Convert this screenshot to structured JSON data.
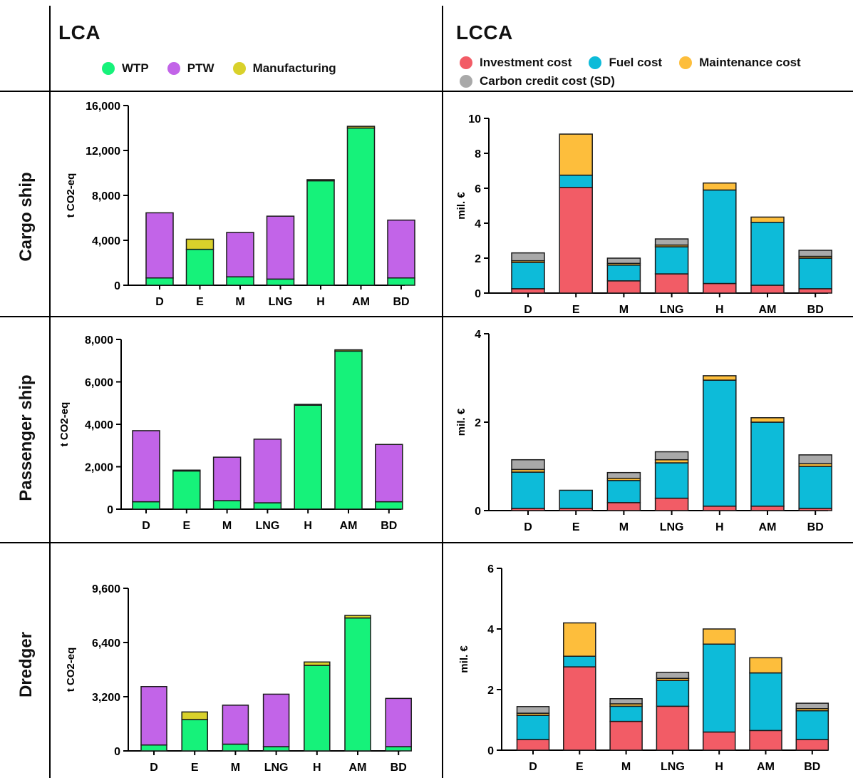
{
  "headers": {
    "lca": "LCA",
    "lcca": "LCCA"
  },
  "legend_lca": [
    {
      "label": "WTP",
      "color": "#16F27A"
    },
    {
      "label": "PTW",
      "color": "#C264E8"
    },
    {
      "label": "Manufacturing",
      "color": "#D9D12B"
    }
  ],
  "legend_lcca": [
    {
      "label": "Investment cost",
      "color": "#F25C66"
    },
    {
      "label": "Fuel cost",
      "color": "#0DBBD9"
    },
    {
      "label": "Maintenance cost",
      "color": "#FDBE3C"
    },
    {
      "label": "Carbon credit cost (SD)",
      "color": "#A9A9A9"
    }
  ],
  "rows": [
    "Cargo ship",
    "Passenger  ship",
    "Dredger"
  ],
  "chart_data": [
    {
      "type": "bar",
      "stacked": true,
      "panel": "cargo-lca",
      "categories": [
        "D",
        "E",
        "M",
        "LNG",
        "H",
        "AM",
        "BD"
      ],
      "ylabel": "t CO2-eq",
      "ylim": [
        0,
        16000
      ],
      "yticks": [
        0,
        4000,
        8000,
        12000,
        16000
      ],
      "ytick_labels": [
        "0",
        "4,000",
        "8,000",
        "12,000",
        "16,000"
      ],
      "series": [
        {
          "name": "WTP",
          "color": "#16F27A",
          "values": [
            650,
            3200,
            750,
            550,
            9300,
            14000,
            650
          ]
        },
        {
          "name": "PTW",
          "color": "#C264E8",
          "values": [
            5800,
            0,
            3950,
            5600,
            0,
            0,
            5150
          ]
        },
        {
          "name": "Manufacturing",
          "color": "#D9D12B",
          "values": [
            0,
            900,
            0,
            0,
            100,
            150,
            0
          ]
        }
      ]
    },
    {
      "type": "bar",
      "stacked": true,
      "panel": "cargo-lcca",
      "categories": [
        "D",
        "E",
        "M",
        "LNG",
        "H",
        "AM",
        "BD"
      ],
      "ylabel": "mil. €",
      "ylim": [
        0,
        10
      ],
      "yticks": [
        0,
        2,
        4,
        6,
        8,
        10
      ],
      "ytick_labels": [
        "0",
        "2",
        "4",
        "6",
        "8",
        "10"
      ],
      "series": [
        {
          "name": "Investment cost",
          "color": "#F25C66",
          "values": [
            0.25,
            6.05,
            0.7,
            1.1,
            0.55,
            0.45,
            0.25
          ]
        },
        {
          "name": "Fuel cost",
          "color": "#0DBBD9",
          "values": [
            1.5,
            0.7,
            0.9,
            1.55,
            5.35,
            3.6,
            1.75
          ]
        },
        {
          "name": "Maintenance cost",
          "color": "#FDBE3C",
          "values": [
            0.1,
            2.35,
            0.1,
            0.1,
            0.4,
            0.3,
            0.1
          ]
        },
        {
          "name": "Carbon credit cost (SD)",
          "color": "#A9A9A9",
          "values": [
            0.45,
            0,
            0.3,
            0.35,
            0,
            0,
            0.35
          ]
        }
      ]
    },
    {
      "type": "bar",
      "stacked": true,
      "panel": "passenger-lca",
      "categories": [
        "D",
        "E",
        "M",
        "LNG",
        "H",
        "AM",
        "BD"
      ],
      "ylabel": "t CO2-eq",
      "ylim": [
        0,
        8000
      ],
      "yticks": [
        0,
        2000,
        4000,
        6000,
        8000
      ],
      "ytick_labels": [
        "0",
        "2,000",
        "4,000",
        "6,000",
        "8,000"
      ],
      "series": [
        {
          "name": "WTP",
          "color": "#16F27A",
          "values": [
            350,
            1800,
            400,
            300,
            4900,
            7450,
            350
          ]
        },
        {
          "name": "PTW",
          "color": "#C264E8",
          "values": [
            3350,
            0,
            2050,
            3000,
            0,
            0,
            2700
          ]
        },
        {
          "name": "Manufacturing",
          "color": "#D9D12B",
          "values": [
            0,
            40,
            0,
            0,
            40,
            60,
            0
          ]
        }
      ]
    },
    {
      "type": "bar",
      "stacked": true,
      "panel": "passenger-lcca",
      "categories": [
        "D",
        "E",
        "M",
        "LNG",
        "H",
        "AM",
        "BD"
      ],
      "ylabel": "mil. €",
      "ylim": [
        0,
        4
      ],
      "yticks": [
        0,
        2,
        4
      ],
      "ytick_labels": [
        "0",
        "2",
        "4"
      ],
      "series": [
        {
          "name": "Investment cost",
          "color": "#F25C66",
          "values": [
            0.05,
            0.05,
            0.18,
            0.28,
            0.1,
            0.1,
            0.05
          ]
        },
        {
          "name": "Fuel cost",
          "color": "#0DBBD9",
          "values": [
            0.82,
            0.41,
            0.5,
            0.8,
            2.85,
            1.9,
            0.95
          ]
        },
        {
          "name": "Maintenance cost",
          "color": "#FDBE3C",
          "values": [
            0.06,
            0,
            0.05,
            0.07,
            0.1,
            0.1,
            0.06
          ]
        },
        {
          "name": "Carbon credit cost (SD)",
          "color": "#A9A9A9",
          "values": [
            0.22,
            0,
            0.13,
            0.18,
            0,
            0,
            0.2
          ]
        }
      ]
    },
    {
      "type": "bar",
      "stacked": true,
      "panel": "dredger-lca",
      "categories": [
        "D",
        "E",
        "M",
        "LNG",
        "H",
        "AM",
        "BD"
      ],
      "ylabel": "t CO2-eq",
      "ylim": [
        0,
        9600
      ],
      "yticks": [
        0,
        3200,
        6400,
        9600
      ],
      "ytick_labels": [
        "0",
        "3,200",
        "6,400",
        "9,600"
      ],
      "series": [
        {
          "name": "WTP",
          "color": "#16F27A",
          "values": [
            350,
            1850,
            400,
            250,
            5050,
            7850,
            250
          ]
        },
        {
          "name": "PTW",
          "color": "#C264E8",
          "values": [
            3450,
            0,
            2300,
            3100,
            0,
            0,
            2850
          ]
        },
        {
          "name": "Manufacturing",
          "color": "#D9D12B",
          "values": [
            0,
            450,
            0,
            0,
            200,
            150,
            0
          ]
        }
      ]
    },
    {
      "type": "bar",
      "stacked": true,
      "panel": "dredger-lcca",
      "categories": [
        "D",
        "E",
        "M",
        "LNG",
        "H",
        "AM",
        "BD"
      ],
      "ylabel": "mil. €",
      "ylim": [
        0,
        6
      ],
      "yticks": [
        0,
        2,
        4,
        6
      ],
      "ytick_labels": [
        "0",
        "2",
        "4",
        "6"
      ],
      "series": [
        {
          "name": "Investment cost",
          "color": "#F25C66",
          "values": [
            0.35,
            2.75,
            0.95,
            1.45,
            0.6,
            0.65,
            0.35
          ]
        },
        {
          "name": "Fuel cost",
          "color": "#0DBBD9",
          "values": [
            0.8,
            0.35,
            0.5,
            0.85,
            2.9,
            1.9,
            0.95
          ]
        },
        {
          "name": "Maintenance cost",
          "color": "#FDBE3C",
          "values": [
            0.07,
            1.1,
            0.08,
            0.07,
            0.5,
            0.5,
            0.07
          ]
        },
        {
          "name": "Carbon credit cost (SD)",
          "color": "#A9A9A9",
          "values": [
            0.22,
            0,
            0.17,
            0.2,
            0,
            0,
            0.18
          ]
        }
      ]
    }
  ]
}
